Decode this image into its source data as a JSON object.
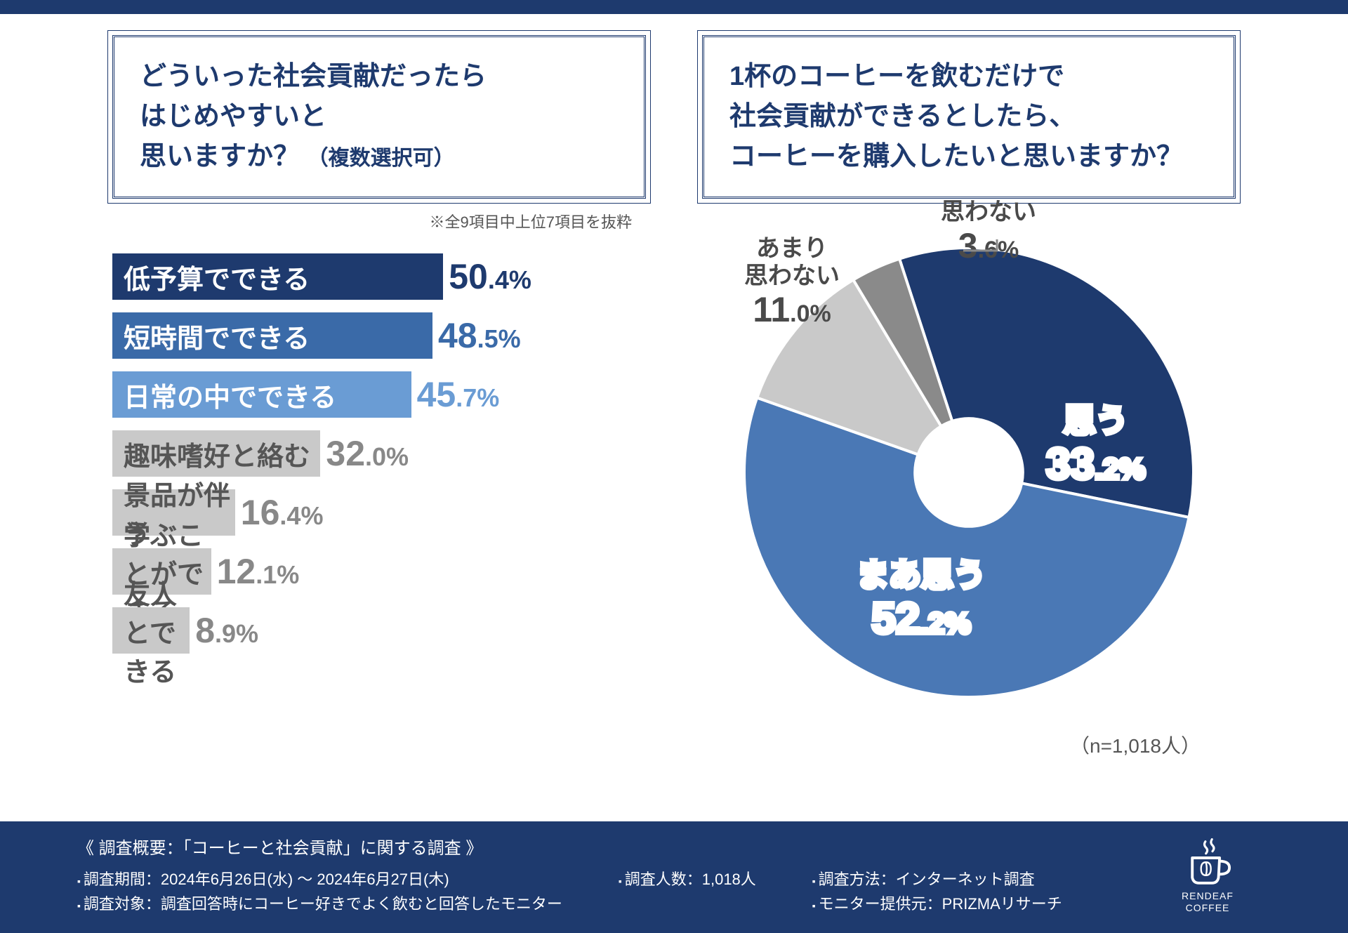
{
  "colors": {
    "brand_navy": "#1e3a6e",
    "bar_colors": [
      "#1e3a6e",
      "#3a6aa8",
      "#6a9cd4",
      "#c9c9c9",
      "#c9c9c9",
      "#c9c9c9",
      "#c9c9c9"
    ],
    "bar_text_colors": [
      "#ffffff",
      "#ffffff",
      "#ffffff",
      "#555555",
      "#555555",
      "#555555",
      "#555555"
    ],
    "bar_value_colors": [
      "#1e3a6e",
      "#3a6aa8",
      "#6a9cd4",
      "#888888",
      "#888888",
      "#888888",
      "#888888"
    ],
    "pie_colors": [
      "#1e3a6e",
      "#4a78b5",
      "#c9c9c9",
      "#8a8a8a"
    ],
    "footer_bg": "#1e3a6e"
  },
  "left": {
    "question_line1": "どういった社会貢献だったら",
    "question_line2": "はじめやすいと",
    "question_line3": "思いますか？",
    "question_sub": "（複数選択可）",
    "note": "※全9項目中上位7項目を抜粋",
    "bars": [
      {
        "label": "低予算でできる",
        "big": "50",
        "small": ".4%",
        "width_pct": 62
      },
      {
        "label": "短時間でできる",
        "big": "48",
        "small": ".5%",
        "width_pct": 60
      },
      {
        "label": "日常の中でできる",
        "big": "45",
        "small": ".7%",
        "width_pct": 56
      },
      {
        "label": "趣味嗜好と絡む",
        "big": "32",
        "small": ".0%",
        "width_pct": 39
      },
      {
        "label": "景品が伴う",
        "big": "16",
        "small": ".4%",
        "width_pct": 23
      },
      {
        "label": "学ぶことができる",
        "big": "12",
        "small": ".1%",
        "width_pct": 18.5
      },
      {
        "label": "友人とできる",
        "big": "8",
        "small": ".9%",
        "width_pct": 14.5
      }
    ]
  },
  "right": {
    "question_line1": "1杯のコーヒーを飲むだけで",
    "question_line2": "社会貢献ができるとしたら、",
    "question_line3": "コーヒーを購入したいと思いますか？",
    "sample_n": "（n=1,018人）",
    "donut": {
      "inner_ratio": 0.24,
      "start_angle_deg": -18,
      "slices": [
        {
          "name": "思う",
          "big": "33",
          "small": ".2%",
          "value": 33.2
        },
        {
          "name": "まあ思う",
          "big": "52",
          "small": ".2%",
          "value": 52.2
        },
        {
          "name": "あまり\n思わない",
          "big": "11",
          "small": ".0%",
          "value": 11.0
        },
        {
          "name": "思わない",
          "big": "3",
          "small": ".6%",
          "value": 3.6
        }
      ]
    }
  },
  "footer": {
    "title": "《 調査概要：「コーヒーと社会貢献」に関する調査 》",
    "col1_line1": "調査期間：2024年6月26日(水) 〜 2024年6月27日(木)",
    "col1_line2": "調査対象：調査回答時にコーヒー好きでよく飲むと回答したモニター",
    "col2_line1": "調査人数：1,018人",
    "col3_line1": "調査方法：インターネット調査",
    "col3_line2": "モニター提供元：PRIZMAリサーチ",
    "logo_line1": "RENDEAF",
    "logo_line2": "COFFEE"
  }
}
